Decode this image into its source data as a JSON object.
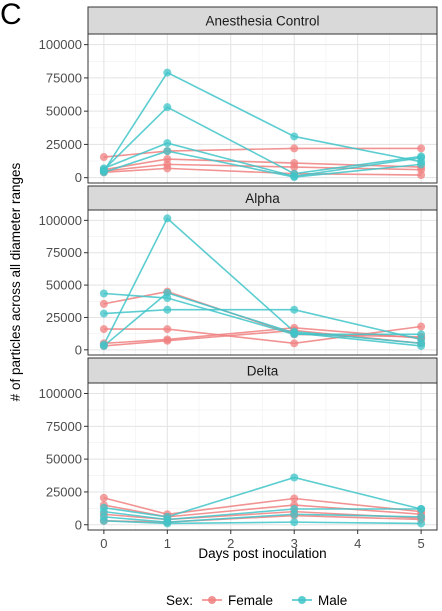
{
  "panel_letter": "C",
  "chart_data": {
    "type": "line",
    "xlabel": "Days post inoculation",
    "ylabel": "# of particles across all diameter ranges",
    "x_ticks": [
      0,
      1,
      2,
      3,
      4,
      5
    ],
    "y_ticks": [
      0,
      25000,
      50000,
      75000,
      100000
    ],
    "xlim": [
      -0.25,
      5.25
    ],
    "ylim": [
      -4000,
      108000
    ],
    "grid": true,
    "legend": {
      "position": "bottom",
      "title": "Sex:",
      "entries": [
        {
          "label": "Female",
          "color": "#F08080"
        },
        {
          "label": "Male",
          "color": "#3FC4C8"
        }
      ]
    },
    "line_x": [
      0,
      1,
      3,
      5
    ],
    "facets": [
      {
        "title": "Anesthesia Control",
        "series": [
          {
            "group": "Female",
            "values": [
              15500,
              20000,
              22000,
              22000
            ]
          },
          {
            "group": "Female",
            "values": [
              6000,
              14000,
              11000,
              8000
            ]
          },
          {
            "group": "Female",
            "values": [
              5000,
              10000,
              8000,
              6000
            ]
          },
          {
            "group": "Female",
            "values": [
              4000,
              7000,
              3000,
              2000
            ]
          },
          {
            "group": "Male",
            "values": [
              5000,
              79000,
              31000,
              12000
            ]
          },
          {
            "group": "Male",
            "values": [
              6000,
              53000,
              3000,
              16000
            ]
          },
          {
            "group": "Male",
            "values": [
              7000,
              26000,
              1000,
              15000
            ]
          },
          {
            "group": "Male",
            "values": [
              4000,
              20000,
              500,
              10000
            ]
          }
        ]
      },
      {
        "title": "Alpha",
        "series": [
          {
            "group": "Female",
            "values": [
              35500,
              45000,
              12000,
              10000
            ]
          },
          {
            "group": "Female",
            "values": [
              16000,
              16000,
              5000,
              18000
            ]
          },
          {
            "group": "Female",
            "values": [
              5000,
              8000,
              17000,
              9000
            ]
          },
          {
            "group": "Female",
            "values": [
              3000,
              7000,
              15000,
              5000
            ]
          },
          {
            "group": "Male",
            "values": [
              43500,
              40000,
              12000,
              12000
            ]
          },
          {
            "group": "Male",
            "values": [
              28000,
              31000,
              31000,
              8000
            ]
          },
          {
            "group": "Male",
            "values": [
              4000,
              101500,
              14000,
              5000
            ]
          },
          {
            "group": "Male",
            "values": [
              3000,
              44000,
              13000,
              3000
            ]
          }
        ]
      },
      {
        "title": "Delta",
        "series": [
          {
            "group": "Female",
            "values": [
              20500,
              8000,
              20000,
              10000
            ]
          },
          {
            "group": "Female",
            "values": [
              15000,
              6000,
              15000,
              8000
            ]
          },
          {
            "group": "Female",
            "values": [
              8000,
              4000,
              10000,
              5000
            ]
          },
          {
            "group": "Female",
            "values": [
              3000,
              2000,
              7000,
              4000
            ]
          },
          {
            "group": "Male",
            "values": [
              13000,
              6000,
              36000,
              12000
            ]
          },
          {
            "group": "Male",
            "values": [
              10000,
              4000,
              12000,
              12000
            ]
          },
          {
            "group": "Male",
            "values": [
              6000,
              2000,
              8000,
              6000
            ]
          },
          {
            "group": "Male",
            "values": [
              3000,
              1000,
              2000,
              1000
            ]
          }
        ]
      }
    ]
  }
}
